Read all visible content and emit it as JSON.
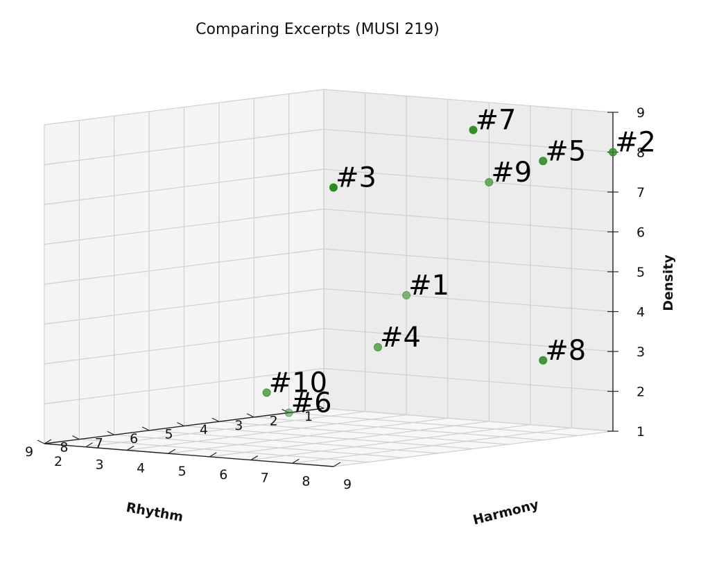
{
  "chart_data": {
    "type": "scatter",
    "title": "Comparing Excerpts (MUSI 219)",
    "xlabel": "Rhythm",
    "ylabel": "Harmony",
    "zlabel": "Density",
    "x_ticks": [
      "1",
      "2",
      "3",
      "4",
      "5",
      "6",
      "7",
      "8",
      "9"
    ],
    "y_ticks": [
      "2",
      "3",
      "4",
      "5",
      "6",
      "7",
      "8",
      "9"
    ],
    "z_ticks": [
      "1",
      "2",
      "3",
      "4",
      "5",
      "6",
      "7",
      "8",
      "9"
    ],
    "xlim": [
      1,
      9
    ],
    "ylim": [
      2,
      9
    ],
    "zlim": [
      1,
      9
    ],
    "marker_color": "#2e8b22",
    "grid": true,
    "points": [
      {
        "label": "#1",
        "x": 1,
        "y": 4,
        "z": 4
      },
      {
        "label": "#2",
        "x": 1,
        "y": 9,
        "z": 8
      },
      {
        "label": "#3",
        "x": 9,
        "y": 9,
        "z": 8
      },
      {
        "label": "#4",
        "x": 3,
        "y": 5,
        "z": 3
      },
      {
        "label": "#5",
        "x": 3,
        "y": 9,
        "z": 8
      },
      {
        "label": "#6",
        "x": 2,
        "y": 2,
        "z": 1
      },
      {
        "label": "#7",
        "x": 5,
        "y": 9,
        "z": 9
      },
      {
        "label": "#8",
        "x": 3,
        "y": 9,
        "z": 3
      },
      {
        "label": "#9",
        "x": 1,
        "y": 6,
        "z": 7
      },
      {
        "label": "#10",
        "x": 5,
        "y": 4,
        "z": 2
      }
    ]
  }
}
